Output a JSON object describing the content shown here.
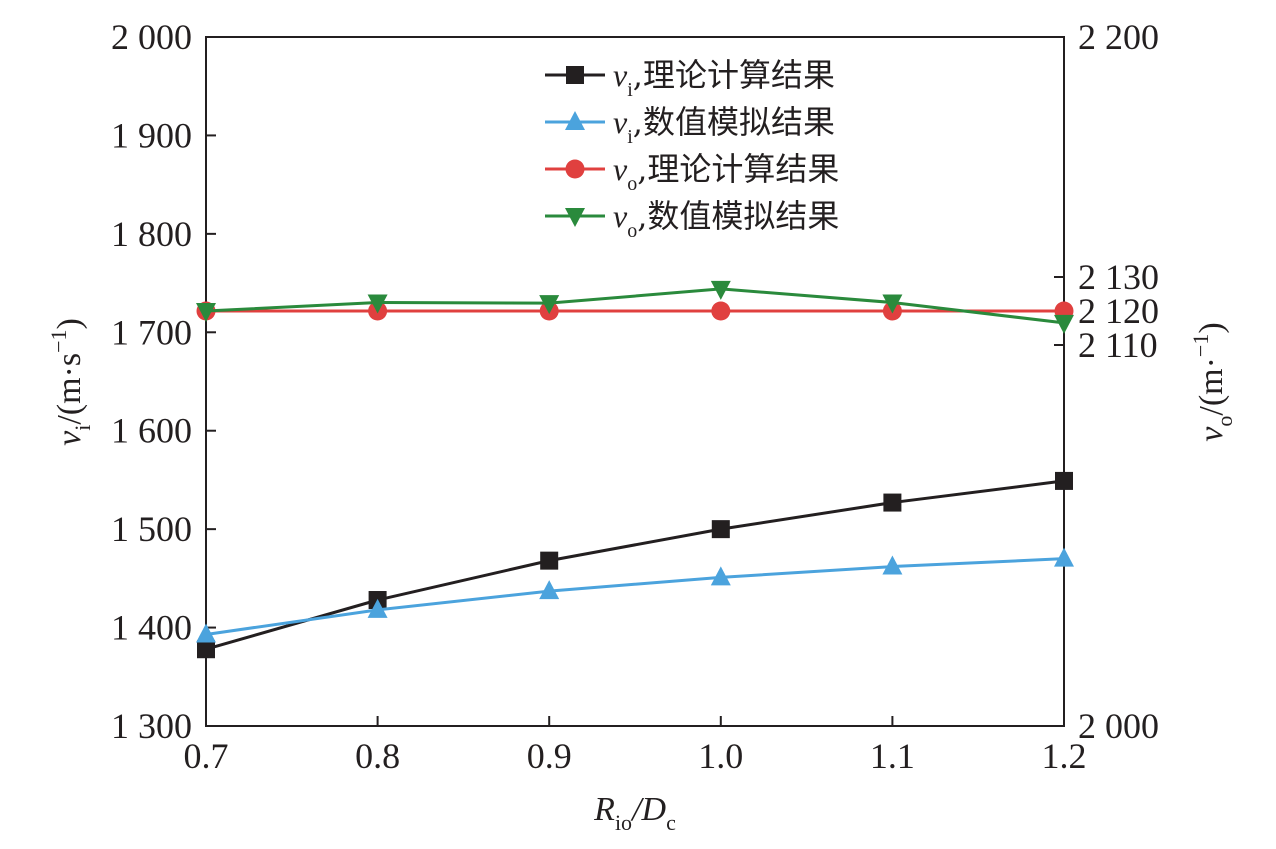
{
  "chart_data": {
    "type": "line",
    "x": [
      0.7,
      0.8,
      0.9,
      1.0,
      1.1,
      1.2
    ],
    "x_tick_labels": [
      "0.7",
      "0.8",
      "0.9",
      "1.0",
      "1.1",
      "1.2"
    ],
    "xlim": [
      0.7,
      1.2
    ],
    "xlabel": {
      "main": "R",
      "sub": "io",
      "mid": "/D",
      "sub2": "c"
    },
    "y_left": {
      "label": {
        "main": "v",
        "sub": "i",
        "rest": "/(m·s",
        "sup": "−1",
        "close": ")"
      },
      "lim": [
        1300,
        2000
      ],
      "ticks": [
        1300,
        1400,
        1500,
        1600,
        1700,
        1800,
        1900,
        2000
      ],
      "tick_labels": [
        "1 300",
        "1 400",
        "1 500",
        "1 600",
        "1 700",
        "1 800",
        "1 900",
        "2 000"
      ]
    },
    "y_right": {
      "label": {
        "main": "v",
        "sub": "o",
        "rest": "/(m·",
        "sup": "−1",
        "close": ")"
      },
      "scale": "broken",
      "ticks": [
        2000,
        2110,
        2120,
        2130,
        2200
      ],
      "tick_labels": [
        "2 000",
        "2 110",
        "2 120",
        "2 130",
        "2 200"
      ]
    },
    "series": [
      {
        "name": {
          "main": "v",
          "sub": "i",
          "text": ",理论计算结果"
        },
        "axis": "left",
        "color": "#231f20",
        "marker": "square",
        "values": [
          1378,
          1428,
          1468,
          1500,
          1527,
          1549
        ]
      },
      {
        "name": {
          "main": "v",
          "sub": "i",
          "text": ",数值模拟结果"
        },
        "axis": "left",
        "color": "#4ba3dd",
        "marker": "triangle-up",
        "values": [
          1393,
          1418,
          1437,
          1451,
          1462,
          1470
        ]
      },
      {
        "name": {
          "main": "v",
          "sub": "o",
          "text": ",理论计算结果"
        },
        "axis": "right",
        "color": "#e0403f",
        "marker": "circle",
        "values": [
          2120,
          2120,
          2120,
          2120,
          2120,
          2120
        ]
      },
      {
        "name": {
          "main": "v",
          "sub": "o",
          "text": ",数值模拟结果"
        },
        "axis": "right",
        "color": "#2a8a3c",
        "marker": "triangle-down",
        "values": [
          2120,
          2122.5,
          2122.3,
          2126.5,
          2122.5,
          2116.5
        ]
      }
    ],
    "legend_position": "top-right",
    "grid": false
  }
}
